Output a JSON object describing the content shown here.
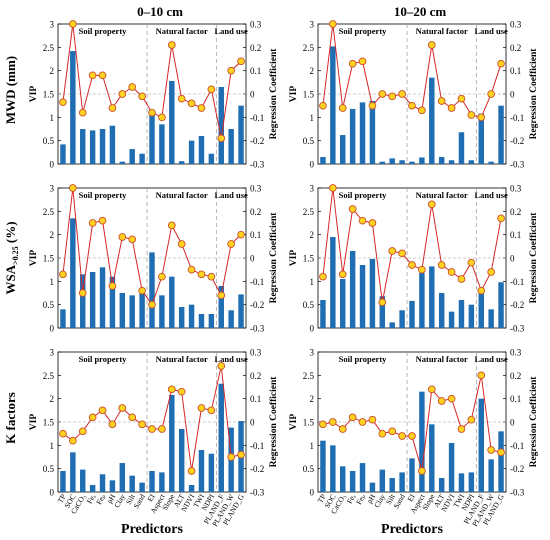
{
  "columns": [
    "0–10 cm",
    "10–20 cm"
  ],
  "rows": [
    {
      "label_main": "MWD (mm)",
      "label_sub": ""
    },
    {
      "label_main": "WSA",
      "label_sub": ">0.25",
      "label_tail": " (%)"
    },
    {
      "label_main": "K factors",
      "label_sub": ""
    }
  ],
  "group_labels": [
    "Soil property",
    "Natural factor",
    "Land use"
  ],
  "y_left_label": "VIP",
  "y_right_label": "Regression Coefficient",
  "x_label": "Predictors",
  "predictors": [
    "TP",
    "SOC",
    "CaCO₃",
    "Feₐ",
    "Feₚ",
    "pH",
    "Clay",
    "Silt",
    "Sand",
    "EI",
    "Aspect",
    "Slope",
    "ALT",
    "NDVI",
    "TWI",
    "NDPI",
    "PLAND_F",
    "PLAND_W",
    "PLAND_G"
  ],
  "colors": {
    "bar": "#1f6db3",
    "line": "#d62728",
    "marker_fill": "#ffd21f",
    "marker_edge": "#c8502a",
    "divider": "#999999"
  },
  "chart_data": [
    {
      "type": "bar",
      "panel": "MWD 0–10 cm",
      "y_left_ticks": [
        "0",
        "0.5",
        "1",
        "1.5",
        "2",
        "2.5",
        "3"
      ],
      "y_right_ticks": [
        "-0.3",
        "-0.2",
        "-0.1",
        "0",
        "0.1",
        "0.2",
        "0.3"
      ],
      "ylim": [
        0,
        3
      ],
      "ylim_right": [
        -0.3,
        0.3
      ],
      "vip": [
        0.42,
        2.42,
        0.75,
        0.72,
        0.75,
        0.82,
        0.05,
        0.32,
        0.22,
        1.08,
        0.85,
        1.78,
        0.06,
        0.5,
        0.6,
        0.22,
        1.65,
        0.75,
        1.25
      ],
      "coef": [
        -0.035,
        0.3,
        -0.08,
        0.08,
        0.08,
        -0.06,
        0.0,
        0.03,
        -0.01,
        -0.08,
        -0.1,
        0.21,
        -0.02,
        -0.04,
        -0.06,
        0.02,
        -0.19,
        0.1,
        0.14
      ]
    },
    {
      "type": "bar",
      "panel": "MWD 10–20 cm",
      "y_left_ticks": [
        "0",
        "0.5",
        "1",
        "1.5",
        "2",
        "2.5",
        "3"
      ],
      "y_right_ticks": [
        "-0.3",
        "-0.2",
        "-0.1",
        "0",
        "0.1",
        "0.2",
        "0.3"
      ],
      "ylim": [
        0,
        3
      ],
      "ylim_right": [
        -0.3,
        0.3
      ],
      "vip": [
        0.15,
        2.52,
        0.62,
        1.18,
        1.32,
        1.35,
        0.05,
        0.12,
        0.08,
        0.05,
        0.14,
        1.85,
        0.15,
        0.08,
        0.68,
        0.08,
        1.08,
        0.05,
        1.25
      ],
      "coef": [
        -0.05,
        0.3,
        -0.06,
        0.13,
        0.14,
        -0.05,
        0.0,
        -0.01,
        0.0,
        -0.05,
        -0.07,
        0.21,
        -0.03,
        -0.06,
        -0.02,
        -0.09,
        -0.1,
        0.0,
        0.13
      ]
    },
    {
      "type": "bar",
      "panel": "WSA 0–10 cm",
      "y_left_ticks": [
        "0",
        "0.5",
        "1",
        "1.5",
        "2",
        "2.5",
        "3"
      ],
      "y_right_ticks": [
        "-0.3",
        "-0.2",
        "-0.1",
        "0",
        "0.1",
        "0.2",
        "0.3"
      ],
      "ylim": [
        0,
        3
      ],
      "ylim_right": [
        -0.3,
        0.3
      ],
      "vip": [
        0.4,
        2.35,
        1.15,
        1.2,
        1.3,
        1.1,
        0.75,
        0.7,
        0.75,
        1.62,
        0.7,
        1.1,
        0.45,
        0.5,
        0.3,
        0.3,
        0.9,
        0.38,
        0.72
      ],
      "coef": [
        -0.07,
        0.3,
        -0.15,
        0.15,
        0.16,
        -0.12,
        0.09,
        0.08,
        -0.14,
        -0.2,
        -0.08,
        0.14,
        0.06,
        -0.05,
        -0.07,
        -0.08,
        -0.16,
        0.06,
        0.1
      ]
    },
    {
      "type": "bar",
      "panel": "WSA 10–20 cm",
      "y_left_ticks": [
        "0",
        "0.5",
        "1",
        "1.5",
        "2",
        "2.5",
        "3"
      ],
      "y_right_ticks": [
        "-0.3",
        "-0.2",
        "-0.1",
        "0",
        "0.1",
        "0.2",
        "0.3"
      ],
      "ylim": [
        0,
        3
      ],
      "ylim_right": [
        -0.3,
        0.3
      ],
      "vip": [
        0.6,
        1.95,
        1.05,
        1.65,
        1.35,
        1.48,
        0.68,
        0.12,
        0.38,
        0.58,
        1.18,
        1.32,
        0.75,
        0.35,
        0.6,
        0.5,
        0.8,
        0.4,
        0.98
      ],
      "coef": [
        -0.08,
        0.3,
        -0.07,
        0.21,
        0.16,
        0.15,
        -0.19,
        0.03,
        0.02,
        -0.03,
        -0.05,
        0.23,
        -0.03,
        -0.06,
        -0.09,
        -0.02,
        -0.14,
        -0.06,
        0.17
      ]
    },
    {
      "type": "bar",
      "panel": "K factors 0–10 cm",
      "y_left_ticks": [
        "0",
        "0.5",
        "1",
        "1.5",
        "2",
        "2.5",
        "3"
      ],
      "y_right_ticks": [
        "-0.3",
        "-0.2",
        "-0.1",
        "0",
        "0.1",
        "0.2",
        "0.3"
      ],
      "ylim": [
        0,
        3
      ],
      "ylim_right": [
        -0.3,
        0.3
      ],
      "vip": [
        0.45,
        0.85,
        0.48,
        0.15,
        0.38,
        0.25,
        0.62,
        0.35,
        0.2,
        0.45,
        0.42,
        2.08,
        1.35,
        0.15,
        0.9,
        0.82,
        2.32,
        1.38,
        1.52
      ],
      "coef": [
        -0.05,
        -0.08,
        -0.04,
        0.02,
        0.05,
        -0.01,
        0.06,
        0.02,
        -0.01,
        -0.03,
        -0.03,
        0.14,
        0.13,
        -0.21,
        0.06,
        0.05,
        0.24,
        -0.15,
        -0.14
      ]
    },
    {
      "type": "bar",
      "panel": "K factors 10–20 cm",
      "y_left_ticks": [
        "0",
        "0.5",
        "1",
        "1.5",
        "2",
        "2.5",
        "3"
      ],
      "y_right_ticks": [
        "-0.3",
        "-0.2",
        "-0.1",
        "0",
        "0.1",
        "0.2",
        "0.3"
      ],
      "ylim": [
        0,
        3
      ],
      "ylim_right": [
        -0.3,
        0.3
      ],
      "vip": [
        1.1,
        1.0,
        0.55,
        0.45,
        0.62,
        0.2,
        0.48,
        0.3,
        0.42,
        0.72,
        2.15,
        1.45,
        0.3,
        1.05,
        0.4,
        0.42,
        2.0,
        0.7,
        1.3
      ],
      "coef": [
        -0.01,
        0.0,
        -0.03,
        0.02,
        0.0,
        0.01,
        -0.05,
        -0.04,
        -0.06,
        -0.06,
        -0.21,
        0.14,
        0.09,
        0.1,
        -0.03,
        0.01,
        0.2,
        -0.12,
        -0.13
      ]
    }
  ]
}
